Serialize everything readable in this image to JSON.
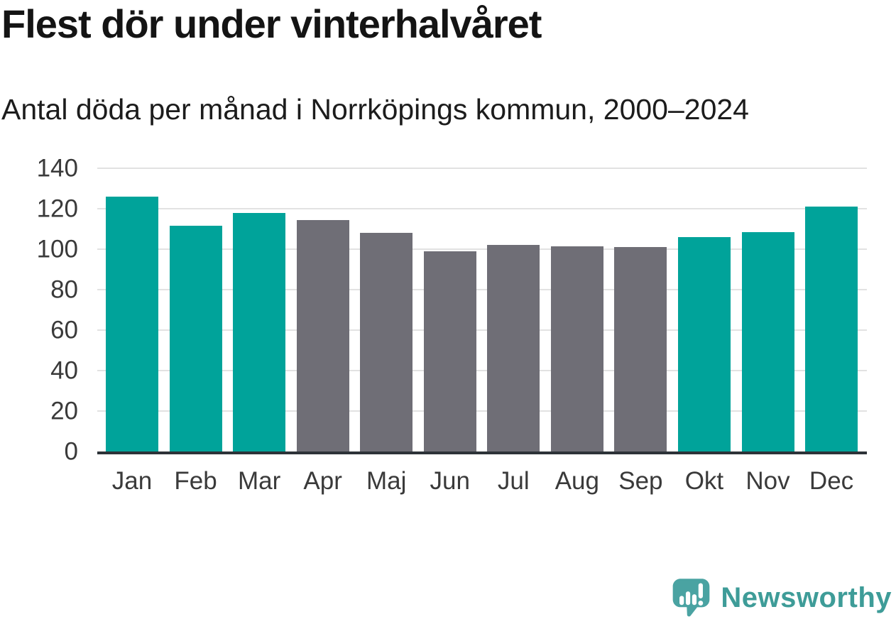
{
  "header": {
    "title": "Flest dör under vinterhalvåret",
    "subtitle": "Antal döda per månad i Norrköpings kommun, 2000–2024"
  },
  "chart_data": {
    "type": "bar",
    "title": "Flest dör under vinterhalvåret",
    "subtitle": "Antal döda per månad i Norrköpings kommun, 2000–2024",
    "categories": [
      "Jan",
      "Feb",
      "Mar",
      "Apr",
      "Maj",
      "Jun",
      "Jul",
      "Aug",
      "Sep",
      "Okt",
      "Nov",
      "Dec"
    ],
    "values": [
      126,
      111.5,
      118,
      114.5,
      108,
      99,
      102,
      101.5,
      101,
      106,
      108.5,
      121
    ],
    "bar_groups": [
      "winter",
      "winter",
      "winter",
      "summer",
      "summer",
      "summer",
      "summer",
      "summer",
      "summer",
      "winter",
      "winter",
      "winter"
    ],
    "bar_palette": {
      "winter": "#00a39a",
      "summer": "#6f6e76"
    },
    "xlabel": "",
    "ylabel": "",
    "ylim": [
      0,
      140
    ],
    "yticks": [
      0,
      20,
      40,
      60,
      80,
      100,
      120,
      140
    ],
    "grid": true,
    "legend": false
  },
  "branding": {
    "name": "Newsworthy",
    "logo_icon": "speech-bubble-with-bar-chart-and-exclamation",
    "text_color": "#3e9c98",
    "icon_color": "#4aa3a2"
  },
  "colors": {
    "bar_teal": "#00a39a",
    "bar_gray": "#6f6e76",
    "gridline": "#e2e2e2",
    "axis_line": "#2d3338",
    "title_text": "#141414",
    "tick_text": "#3a3a3a"
  }
}
